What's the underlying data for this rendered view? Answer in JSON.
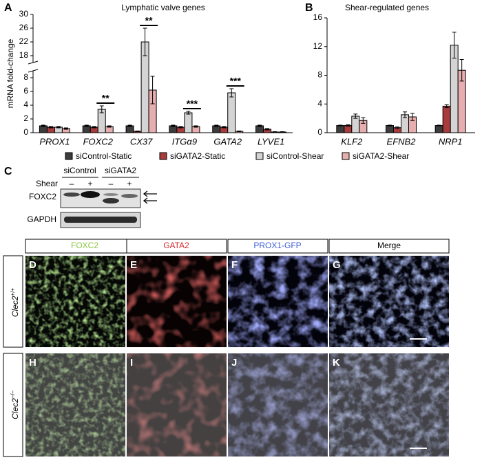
{
  "chart_data": [
    {
      "type": "bar",
      "panel": "A",
      "title": "Lymphatic valve genes",
      "y_label": "mRNA fold-change",
      "categories": [
        "PROX1",
        "FOXC2",
        "CX37",
        "ITGα9",
        "GATA2",
        "LYVE1"
      ],
      "series": [
        {
          "name": "siControl-Static",
          "color": "#3c3c3c",
          "values": [
            1.0,
            1.0,
            1.0,
            1.0,
            1.0,
            1.0
          ],
          "errors": [
            0.1,
            0.1,
            0.1,
            0.1,
            0.1,
            0.1
          ]
        },
        {
          "name": "siGATA2-Static",
          "color": "#a83c3c",
          "values": [
            0.8,
            0.8,
            0.2,
            0.8,
            0.8,
            0.5
          ],
          "errors": [
            0.1,
            0.1,
            0.05,
            0.1,
            0.1,
            0.1
          ]
        },
        {
          "name": "siControl-Shear",
          "color": "#d4d4d4",
          "values": [
            0.8,
            3.4,
            22,
            2.9,
            5.8,
            0.1
          ],
          "errors": [
            0.1,
            0.5,
            4,
            0.2,
            0.6,
            0.05
          ]
        },
        {
          "name": "siGATA2-Shear",
          "color": "#e6aeae",
          "values": [
            0.6,
            0.9,
            6.2,
            0.9,
            0.2,
            0.1
          ],
          "errors": [
            0.1,
            0.1,
            2,
            0.1,
            0.05,
            0.05
          ]
        }
      ],
      "ylim": [
        0,
        30
      ],
      "yticks": [
        0,
        2,
        4,
        6,
        8,
        18,
        22,
        26,
        30
      ],
      "ybreak": [
        9,
        16
      ],
      "annotations": [
        {
          "category": "FOXC2",
          "label": "**"
        },
        {
          "category": "CX37",
          "label": "**"
        },
        {
          "category": "ITGα9",
          "label": "***"
        },
        {
          "category": "GATA2",
          "label": "***"
        }
      ]
    },
    {
      "type": "bar",
      "panel": "B",
      "title": "Shear-regulated genes",
      "categories": [
        "KLF2",
        "EFNB2",
        "NRP1"
      ],
      "series": [
        {
          "name": "siControl-Static",
          "color": "#3c3c3c",
          "values": [
            1.0,
            1.0,
            1.0
          ],
          "errors": [
            0.05,
            0.05,
            0.05
          ]
        },
        {
          "name": "siGATA2-Static",
          "color": "#a83c3c",
          "values": [
            1.0,
            0.7,
            3.7
          ],
          "errors": [
            0.1,
            0.1,
            0.2
          ]
        },
        {
          "name": "siControl-Shear",
          "color": "#d4d4d4",
          "values": [
            2.3,
            2.5,
            12.2
          ],
          "errors": [
            0.3,
            0.4,
            1.8
          ]
        },
        {
          "name": "siGATA2-Shear",
          "color": "#e6aeae",
          "values": [
            1.7,
            2.2,
            8.7
          ],
          "errors": [
            0.4,
            0.5,
            1.5
          ]
        }
      ],
      "ylim": [
        0,
        16
      ],
      "yticks": [
        0,
        4,
        8,
        12,
        16
      ]
    }
  ],
  "blot": {
    "panel": "C",
    "groups": [
      "siControl",
      "siGATA2"
    ],
    "row_label": "Shear",
    "lanes": [
      "–",
      "+",
      "–",
      "+"
    ],
    "bands": [
      "FOXC2",
      "GAPDH"
    ]
  },
  "images": {
    "columns": [
      "FOXC2",
      "GATA2",
      "PROX1-GFP",
      "Merge"
    ],
    "rows": [
      {
        "gene": "Clec2",
        "genotype": "+/+",
        "panels": [
          "D",
          "E",
          "F",
          "G"
        ]
      },
      {
        "gene": "Clec2",
        "genotype": "–/–",
        "panels": [
          "H",
          "I",
          "J",
          "K"
        ]
      }
    ]
  }
}
